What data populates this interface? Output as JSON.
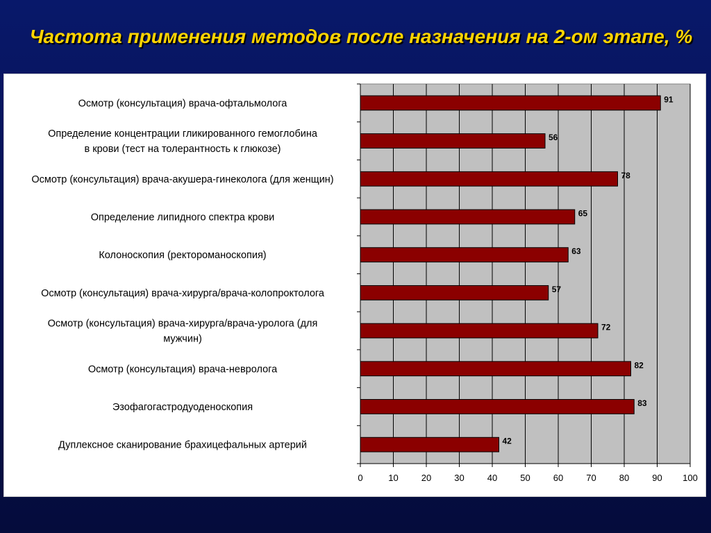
{
  "title": "Частота применения методов после назначения на 2-ом этапе, %",
  "colors": {
    "background": "#06114e",
    "title": "#ffd400",
    "bar_fill": "#8b0000",
    "plot_area": "#c0c0c0",
    "gridline": "#000000"
  },
  "chart_data": {
    "type": "bar",
    "orientation": "horizontal",
    "title": "Частота применения методов после назначения на 2-ом этапе, %",
    "xlabel": "",
    "ylabel": "",
    "xlim": [
      0,
      100
    ],
    "x_ticks": [
      0,
      10,
      20,
      30,
      40,
      50,
      60,
      70,
      80,
      90,
      100
    ],
    "grid": true,
    "legend": "none",
    "categories": [
      [
        "Осмотр (консультация) врача-офтальмолога"
      ],
      [
        "Определение концентрации гликированного гемоглобина",
        "в крови (тест на толерантность к глюкозе)"
      ],
      [
        "Осмотр (консультация) врача-акушера-гинеколога (для женщин)"
      ],
      [
        "Определение липидного спектра крови"
      ],
      [
        "Колоноскопия (ректороманоскопия)"
      ],
      [
        "Осмотр (консультация) врача-хирурга/врача-колопроктолога"
      ],
      [
        "Осмотр (консультация) врача-хирурга/врача-уролога (для",
        "мужчин)"
      ],
      [
        "Осмотр (консультация) врача-невролога"
      ],
      [
        "Эзофагогастродуоденоскопия"
      ],
      [
        "Дуплексное сканирование брахицефальных артерий"
      ]
    ],
    "values": [
      91,
      56,
      78,
      65,
      63,
      57,
      72,
      82,
      83,
      42
    ]
  }
}
